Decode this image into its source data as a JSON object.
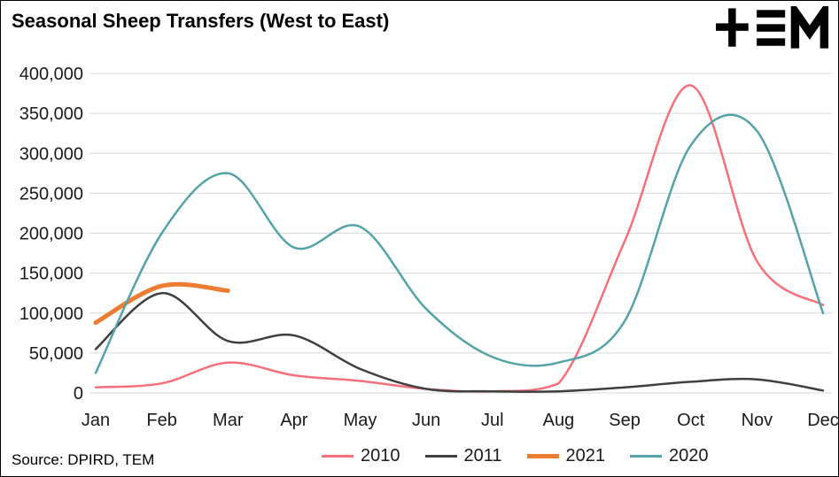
{
  "page": {
    "title": "Seasonal Sheep Transfers (West to East)",
    "source": "Source: DPIRD, TEM",
    "logo": "TEM"
  },
  "chart_data": {
    "type": "line",
    "title": "Seasonal Sheep Transfers (West to East)",
    "categories": [
      "Jan",
      "Feb",
      "Mar",
      "Apr",
      "May",
      "Jun",
      "Jul",
      "Aug",
      "Sep",
      "Oct",
      "Nov",
      "Dec"
    ],
    "ylabel": "",
    "xlabel": "",
    "ylim": [
      0,
      400000
    ],
    "y_tick_step": 50000,
    "grid": "horizontal",
    "legend_position": "bottom",
    "series": [
      {
        "name": "2010",
        "color": "#f4707b",
        "line_width": 2.5,
        "values": [
          7000,
          12000,
          38000,
          22000,
          15000,
          5000,
          2000,
          12000,
          190000,
          385000,
          165000,
          110000
        ]
      },
      {
        "name": "2011",
        "color": "#3f3f3f",
        "line_width": 2.5,
        "values": [
          55000,
          125000,
          65000,
          72000,
          30000,
          5000,
          2000,
          2000,
          7000,
          14000,
          17000,
          3000
        ]
      },
      {
        "name": "2021",
        "color": "#ed7d31",
        "line_width": 5,
        "values": [
          88000,
          134000,
          128000
        ]
      },
      {
        "name": "2020",
        "color": "#55a3a9",
        "line_width": 2.5,
        "values": [
          25000,
          200000,
          275000,
          182000,
          208000,
          105000,
          45000,
          38000,
          90000,
          310000,
          328000,
          100000
        ]
      }
    ]
  }
}
